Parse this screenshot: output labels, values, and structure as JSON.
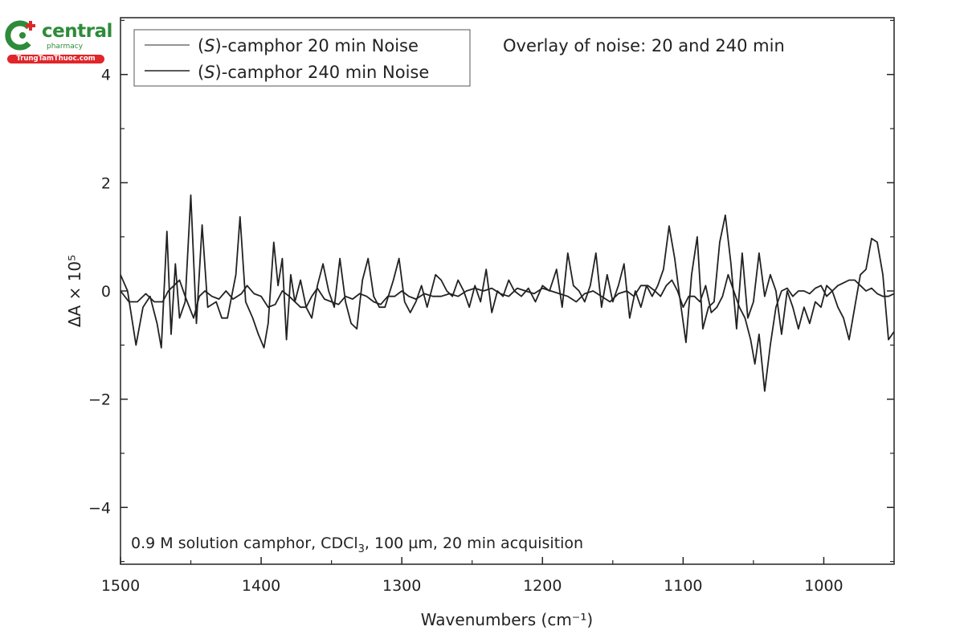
{
  "logo": {
    "name": "central",
    "subtitle": "pharmacy",
    "site": "TrungTamThuoc.com",
    "green": "#2e8b3a",
    "red": "#e0262b"
  },
  "chart_data": {
    "type": "line",
    "title": "Overlay of noise: 20 and 240 min",
    "annotation": "0.9 M solution camphor, CDCl3, 100 µm, 20 min acquisition",
    "annotation_parts": {
      "pre": "0.9 M solution camphor, CDCl",
      "sub": "3",
      "post": ", 100 µm, 20 min acquisition"
    },
    "xlabel": "Wavenumbers (cm⁻¹)",
    "ylabel": "ΔA × 10⁵",
    "ylabel_parts": {
      "delta": "Δ",
      "a": "A",
      "times": " × 10",
      "exp": "5"
    },
    "xlim": [
      1500,
      950
    ],
    "ylim": [
      -5.05,
      5.05
    ],
    "x_ticks": [
      1500,
      1400,
      1300,
      1200,
      1100,
      1000
    ],
    "x_tick_labels": [
      "1500",
      "1400",
      "1300",
      "1200",
      "1100",
      "1000"
    ],
    "y_ticks": [
      4,
      2,
      0,
      -2,
      -4
    ],
    "y_tick_labels": [
      "4",
      "2",
      "0",
      "−2",
      "−4"
    ],
    "grid": false,
    "legend_position": "top-left",
    "line_color": "#222222",
    "series": [
      {
        "name": "(S)-camphor 20 min Noise",
        "name_parts": {
          "pre": "(",
          "italic": "S",
          "post": ")-camphor 20 min Noise"
        },
        "points": [
          [
            1500,
            0.0
          ],
          [
            1494,
            -0.2
          ],
          [
            1488,
            -0.2
          ],
          [
            1482,
            -0.05
          ],
          [
            1476,
            -0.2
          ],
          [
            1470,
            -0.2
          ],
          [
            1466,
            0.0
          ],
          [
            1462,
            0.1
          ],
          [
            1458,
            0.2
          ],
          [
            1454,
            -0.1
          ],
          [
            1448,
            -0.5
          ],
          [
            1444,
            -0.1
          ],
          [
            1440,
            0.0
          ],
          [
            1435,
            -0.1
          ],
          [
            1430,
            -0.15
          ],
          [
            1425,
            0.0
          ],
          [
            1420,
            -0.15
          ],
          [
            1414,
            -0.05
          ],
          [
            1410,
            0.1
          ],
          [
            1405,
            -0.05
          ],
          [
            1400,
            -0.1
          ],
          [
            1395,
            -0.3
          ],
          [
            1390,
            -0.25
          ],
          [
            1385,
            0.0
          ],
          [
            1380,
            -0.1
          ],
          [
            1376,
            -0.2
          ],
          [
            1372,
            -0.3
          ],
          [
            1368,
            -0.3
          ],
          [
            1364,
            -0.1
          ],
          [
            1360,
            0.05
          ],
          [
            1355,
            -0.15
          ],
          [
            1350,
            -0.2
          ],
          [
            1345,
            -0.25
          ],
          [
            1340,
            -0.1
          ],
          [
            1335,
            -0.15
          ],
          [
            1330,
            -0.05
          ],
          [
            1325,
            -0.1
          ],
          [
            1320,
            -0.2
          ],
          [
            1315,
            -0.25
          ],
          [
            1310,
            -0.1
          ],
          [
            1305,
            -0.1
          ],
          [
            1300,
            0.0
          ],
          [
            1295,
            -0.1
          ],
          [
            1290,
            -0.15
          ],
          [
            1284,
            -0.05
          ],
          [
            1278,
            -0.1
          ],
          [
            1272,
            -0.1
          ],
          [
            1266,
            -0.05
          ],
          [
            1260,
            -0.1
          ],
          [
            1254,
            0.0
          ],
          [
            1248,
            0.05
          ],
          [
            1242,
            0.0
          ],
          [
            1236,
            0.05
          ],
          [
            1230,
            -0.05
          ],
          [
            1224,
            -0.1
          ],
          [
            1218,
            0.05
          ],
          [
            1212,
            0.0
          ],
          [
            1206,
            -0.05
          ],
          [
            1200,
            0.05
          ],
          [
            1194,
            0.0
          ],
          [
            1188,
            -0.05
          ],
          [
            1182,
            -0.1
          ],
          [
            1176,
            -0.2
          ],
          [
            1170,
            -0.05
          ],
          [
            1164,
            0.0
          ],
          [
            1158,
            -0.1
          ],
          [
            1152,
            -0.2
          ],
          [
            1146,
            -0.05
          ],
          [
            1140,
            0.0
          ],
          [
            1135,
            -0.1
          ],
          [
            1130,
            0.1
          ],
          [
            1125,
            0.1
          ],
          [
            1120,
            0.0
          ],
          [
            1116,
            -0.1
          ],
          [
            1112,
            0.1
          ],
          [
            1108,
            0.2
          ],
          [
            1104,
            0.0
          ],
          [
            1100,
            -0.3
          ],
          [
            1096,
            -0.1
          ],
          [
            1092,
            -0.1
          ],
          [
            1088,
            -0.2
          ],
          [
            1084,
            0.1
          ],
          [
            1080,
            -0.4
          ],
          [
            1076,
            -0.3
          ],
          [
            1072,
            -0.1
          ],
          [
            1068,
            0.3
          ],
          [
            1064,
            0.0
          ],
          [
            1060,
            -0.3
          ],
          [
            1056,
            -0.5
          ],
          [
            1052,
            -0.9
          ],
          [
            1049,
            -1.35
          ],
          [
            1046,
            -0.8
          ],
          [
            1042,
            -1.85
          ],
          [
            1038,
            -1.0
          ],
          [
            1034,
            -0.3
          ],
          [
            1030,
            0.0
          ],
          [
            1026,
            0.05
          ],
          [
            1022,
            -0.1
          ],
          [
            1018,
            0.0
          ],
          [
            1014,
            0.0
          ],
          [
            1010,
            -0.05
          ],
          [
            1006,
            0.05
          ],
          [
            1002,
            0.1
          ],
          [
            998,
            -0.1
          ],
          [
            994,
            0.0
          ],
          [
            990,
            0.1
          ],
          [
            986,
            0.15
          ],
          [
            982,
            0.2
          ],
          [
            978,
            0.2
          ],
          [
            974,
            0.1
          ],
          [
            970,
            0.0
          ],
          [
            966,
            0.05
          ],
          [
            962,
            -0.05
          ],
          [
            958,
            -0.1
          ],
          [
            954,
            -0.1
          ],
          [
            950,
            -0.05
          ]
        ]
      },
      {
        "name": "(S)-camphor 240 min Noise",
        "name_parts": {
          "pre": "(",
          "italic": "S",
          "post": ")-camphor 240 min Noise"
        },
        "points": [
          [
            1500,
            0.3
          ],
          [
            1495,
            0.0
          ],
          [
            1489,
            -1.0
          ],
          [
            1484,
            -0.3
          ],
          [
            1479,
            -0.1
          ],
          [
            1474,
            -0.6
          ],
          [
            1471,
            -1.05
          ],
          [
            1467,
            1.1
          ],
          [
            1464,
            -0.8
          ],
          [
            1461,
            0.5
          ],
          [
            1458,
            -0.5
          ],
          [
            1454,
            -0.2
          ],
          [
            1450,
            1.77
          ],
          [
            1446,
            -0.6
          ],
          [
            1442,
            1.22
          ],
          [
            1438,
            -0.3
          ],
          [
            1432,
            -0.2
          ],
          [
            1428,
            -0.5
          ],
          [
            1424,
            -0.5
          ],
          [
            1418,
            0.3
          ],
          [
            1415,
            1.37
          ],
          [
            1411,
            -0.2
          ],
          [
            1406,
            -0.5
          ],
          [
            1402,
            -0.8
          ],
          [
            1398,
            -1.05
          ],
          [
            1395,
            -0.6
          ],
          [
            1391,
            0.9
          ],
          [
            1388,
            0.1
          ],
          [
            1385,
            0.6
          ],
          [
            1382,
            -0.9
          ],
          [
            1379,
            0.3
          ],
          [
            1376,
            -0.2
          ],
          [
            1372,
            0.2
          ],
          [
            1368,
            -0.3
          ],
          [
            1364,
            -0.5
          ],
          [
            1360,
            0.1
          ],
          [
            1356,
            0.5
          ],
          [
            1352,
            0.0
          ],
          [
            1348,
            -0.3
          ],
          [
            1344,
            0.6
          ],
          [
            1340,
            -0.2
          ],
          [
            1336,
            -0.6
          ],
          [
            1332,
            -0.7
          ],
          [
            1328,
            0.2
          ],
          [
            1324,
            0.6
          ],
          [
            1320,
            -0.1
          ],
          [
            1316,
            -0.3
          ],
          [
            1312,
            -0.3
          ],
          [
            1306,
            0.2
          ],
          [
            1302,
            0.6
          ],
          [
            1298,
            -0.2
          ],
          [
            1294,
            -0.4
          ],
          [
            1290,
            -0.2
          ],
          [
            1286,
            0.1
          ],
          [
            1282,
            -0.3
          ],
          [
            1276,
            0.3
          ],
          [
            1272,
            0.2
          ],
          [
            1268,
            0.0
          ],
          [
            1264,
            -0.1
          ],
          [
            1260,
            0.2
          ],
          [
            1256,
            0.0
          ],
          [
            1252,
            -0.3
          ],
          [
            1248,
            0.1
          ],
          [
            1244,
            -0.2
          ],
          [
            1240,
            0.4
          ],
          [
            1236,
            -0.4
          ],
          [
            1232,
            0.0
          ],
          [
            1228,
            -0.1
          ],
          [
            1224,
            0.2
          ],
          [
            1220,
            0.0
          ],
          [
            1215,
            -0.1
          ],
          [
            1210,
            0.05
          ],
          [
            1205,
            -0.2
          ],
          [
            1200,
            0.1
          ],
          [
            1195,
            0.0
          ],
          [
            1190,
            0.4
          ],
          [
            1186,
            -0.3
          ],
          [
            1182,
            0.7
          ],
          [
            1178,
            0.1
          ],
          [
            1174,
            0.0
          ],
          [
            1170,
            -0.2
          ],
          [
            1166,
            0.1
          ],
          [
            1162,
            0.7
          ],
          [
            1158,
            -0.3
          ],
          [
            1154,
            0.3
          ],
          [
            1150,
            -0.2
          ],
          [
            1146,
            0.1
          ],
          [
            1142,
            0.5
          ],
          [
            1138,
            -0.5
          ],
          [
            1134,
            0.0
          ],
          [
            1130,
            -0.3
          ],
          [
            1126,
            0.1
          ],
          [
            1122,
            -0.1
          ],
          [
            1118,
            0.1
          ],
          [
            1114,
            0.4
          ],
          [
            1110,
            1.2
          ],
          [
            1106,
            0.6
          ],
          [
            1102,
            -0.2
          ],
          [
            1098,
            -0.95
          ],
          [
            1094,
            0.3
          ],
          [
            1090,
            1.0
          ],
          [
            1086,
            -0.7
          ],
          [
            1082,
            -0.3
          ],
          [
            1078,
            -0.2
          ],
          [
            1074,
            0.9
          ],
          [
            1070,
            1.4
          ],
          [
            1066,
            0.5
          ],
          [
            1062,
            -0.7
          ],
          [
            1058,
            0.7
          ],
          [
            1054,
            -0.5
          ],
          [
            1050,
            -0.2
          ],
          [
            1046,
            0.7
          ],
          [
            1042,
            -0.1
          ],
          [
            1038,
            0.3
          ],
          [
            1034,
            0.0
          ],
          [
            1030,
            -0.8
          ],
          [
            1026,
            0.0
          ],
          [
            1022,
            -0.3
          ],
          [
            1018,
            -0.7
          ],
          [
            1014,
            -0.3
          ],
          [
            1010,
            -0.6
          ],
          [
            1006,
            -0.2
          ],
          [
            1002,
            -0.3
          ],
          [
            998,
            0.1
          ],
          [
            994,
            0.0
          ],
          [
            990,
            -0.3
          ],
          [
            986,
            -0.5
          ],
          [
            982,
            -0.9
          ],
          [
            978,
            -0.3
          ],
          [
            974,
            0.3
          ],
          [
            970,
            0.4
          ],
          [
            966,
            0.97
          ],
          [
            962,
            0.9
          ],
          [
            958,
            0.3
          ],
          [
            954,
            -0.9
          ],
          [
            950,
            -0.75
          ]
        ]
      }
    ]
  }
}
